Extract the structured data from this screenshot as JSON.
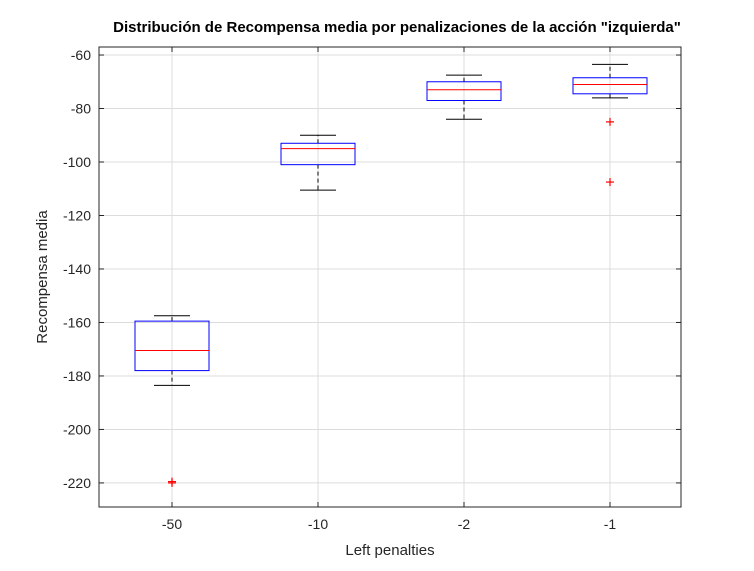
{
  "chart_data": {
    "type": "box",
    "title": "Distribución de Recompensa media por penalizaciones de la acción \"izquierda\"",
    "xlabel": "Left penalties",
    "ylabel": "Recompensa media",
    "ylim": [
      -229,
      -57
    ],
    "yticks": [
      -60,
      -80,
      -100,
      -120,
      -140,
      -160,
      -180,
      -200,
      -220
    ],
    "yticklabels": [
      "-60",
      "-80",
      "-100",
      "-120",
      "-140",
      "-160",
      "-180",
      "-200",
      "-220"
    ],
    "categories": [
      "-50",
      "-10",
      "-2",
      "-1"
    ],
    "grid": true,
    "boxes": [
      {
        "category": "-50",
        "q1": -178,
        "median": -170.5,
        "q3": -159.5,
        "whisker_low": -183.5,
        "whisker_high": -157.5,
        "outliers": [
          -219.5,
          -220
        ]
      },
      {
        "category": "-10",
        "q1": -101,
        "median": -95,
        "q3": -93,
        "whisker_low": -110.5,
        "whisker_high": -90,
        "outliers": []
      },
      {
        "category": "-2",
        "q1": -77,
        "median": -73,
        "q3": -70,
        "whisker_low": -84,
        "whisker_high": -67.5,
        "outliers": []
      },
      {
        "category": "-1",
        "q1": -74.5,
        "median": -71,
        "q3": -68.5,
        "whisker_low": -76,
        "whisker_high": -63.5,
        "outliers": [
          -85,
          -107.5
        ]
      }
    ],
    "colors": {
      "box": "#0000ff",
      "median": "#ff0000",
      "whisker": "#000000",
      "outlier": "#ff0000",
      "grid": "#dcdcdc",
      "axis": "#262626"
    }
  }
}
